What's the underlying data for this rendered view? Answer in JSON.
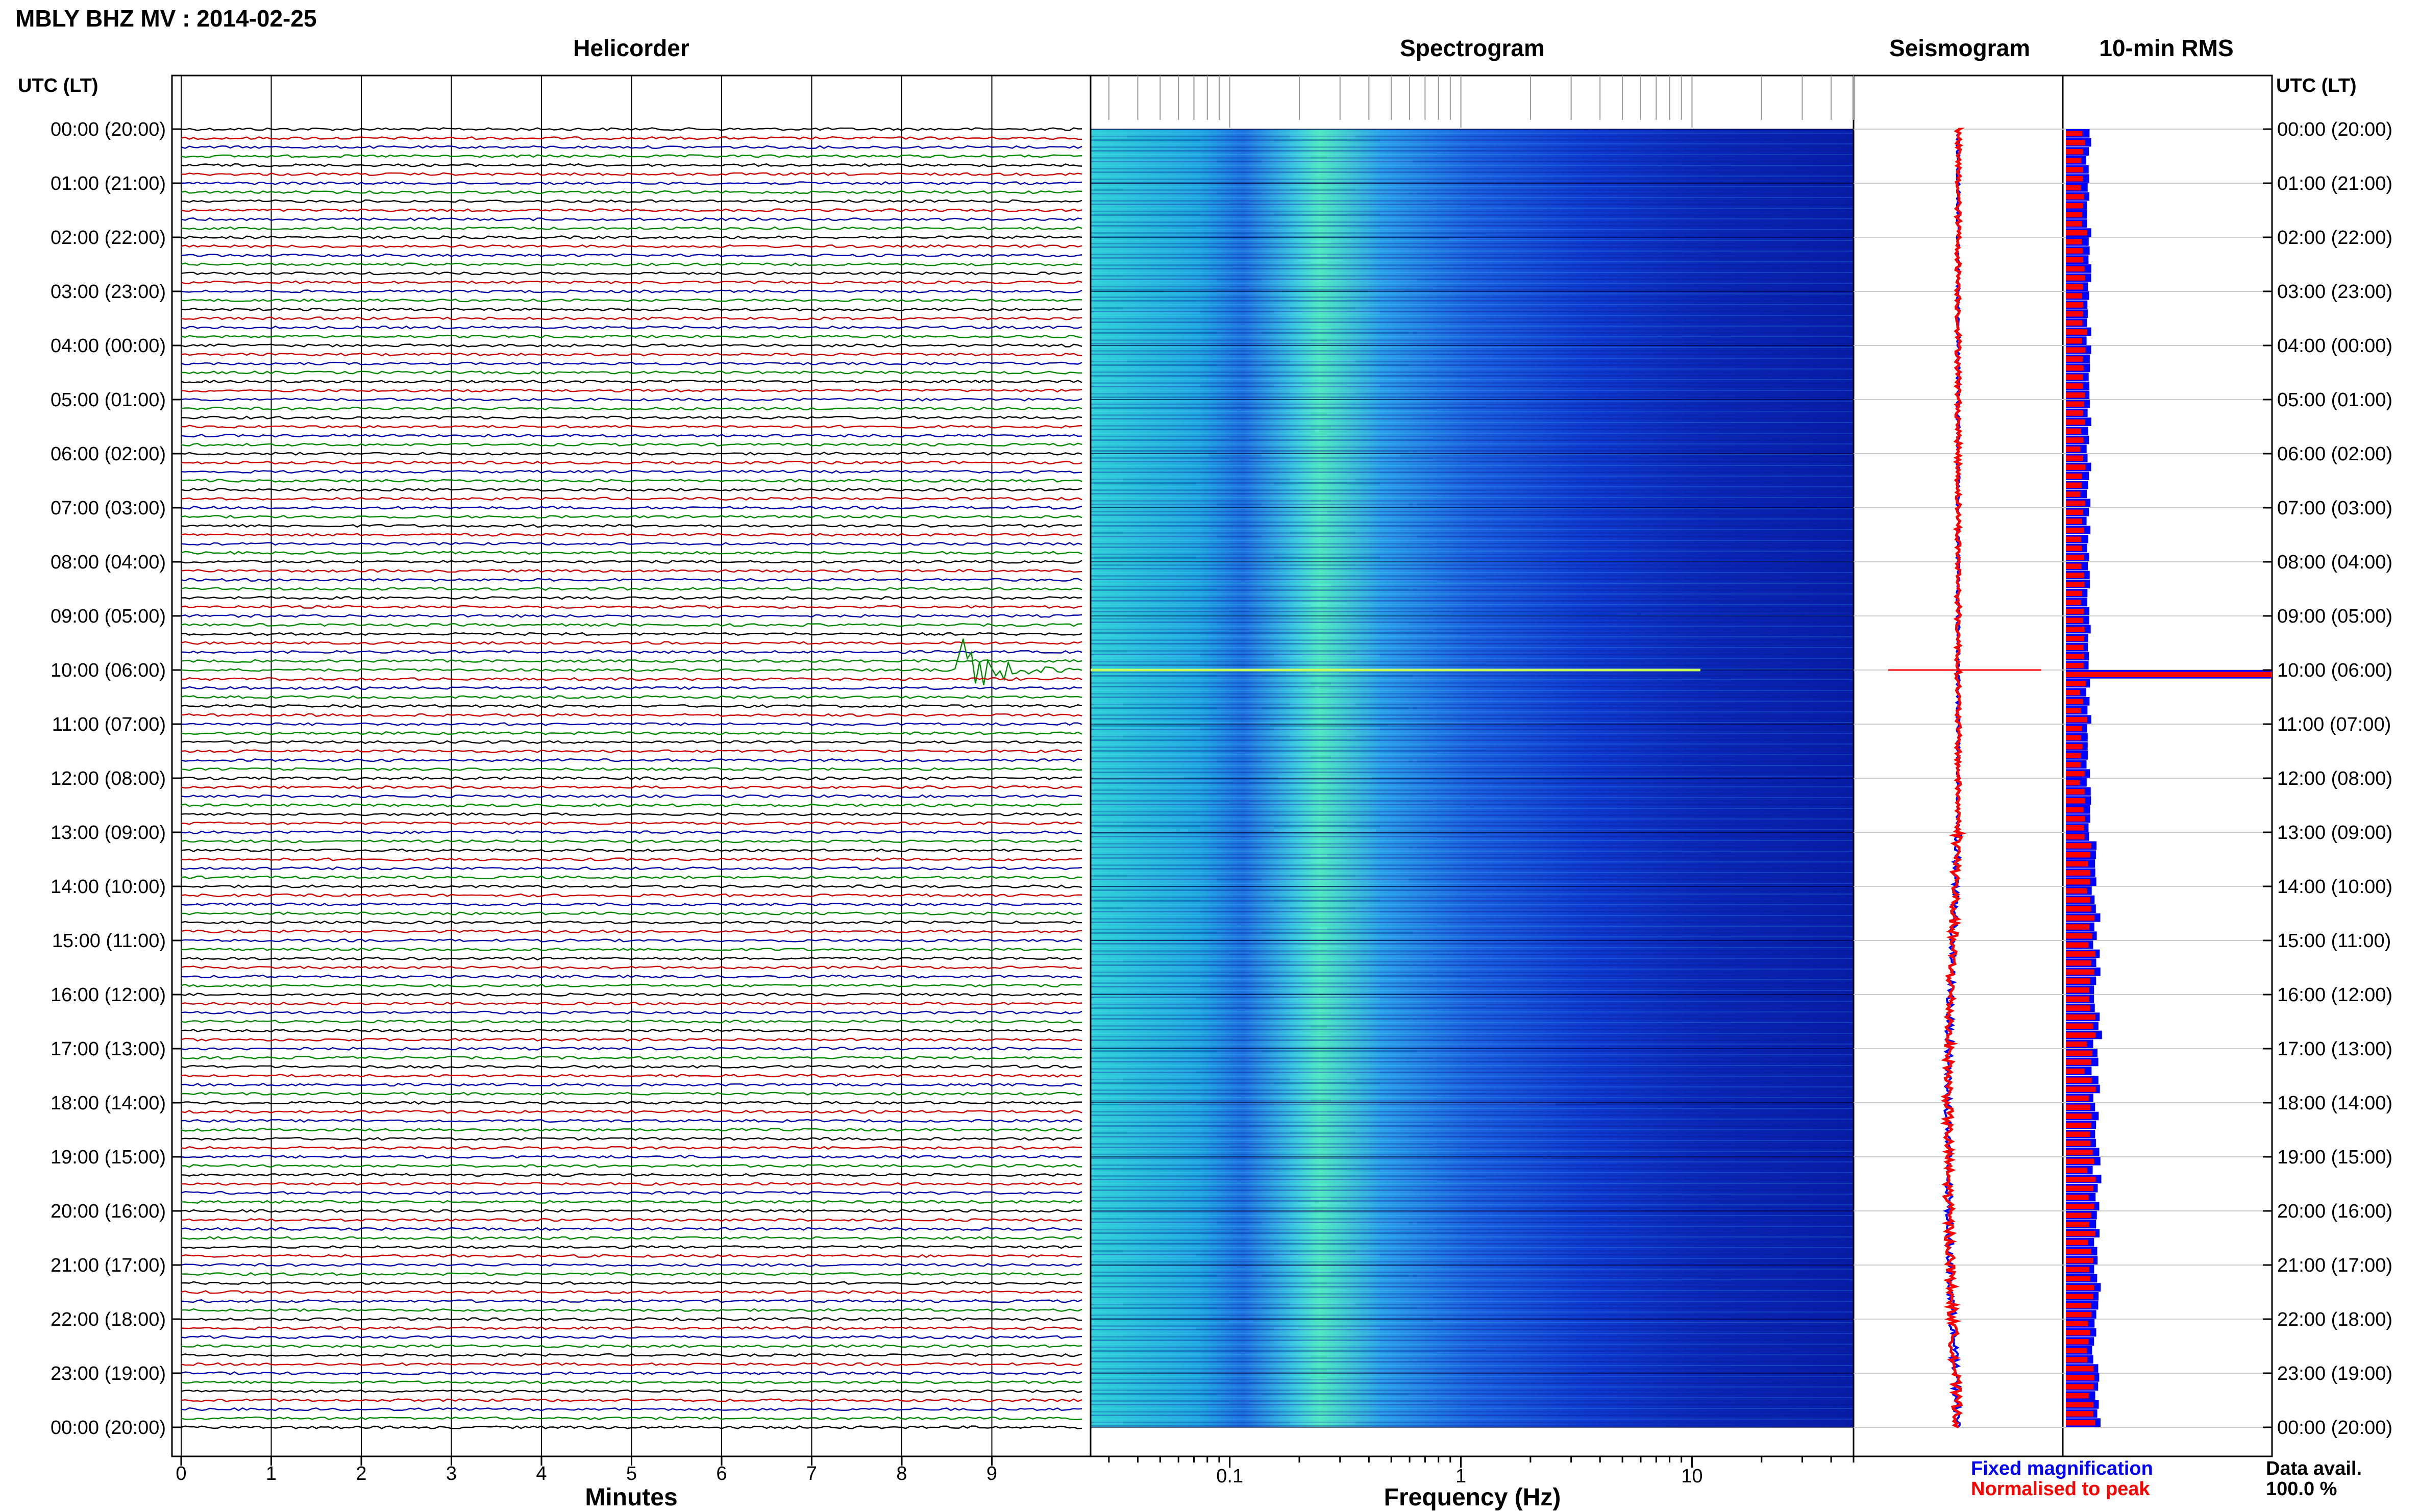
{
  "page_title": "MBLY BHZ MV : 2014-02-25",
  "time_axis_label": "UTC (LT)",
  "time_labels": [
    "00:00 (20:00)",
    "01:00 (21:00)",
    "02:00 (22:00)",
    "03:00 (23:00)",
    "04:00 (00:00)",
    "05:00 (01:00)",
    "06:00 (02:00)",
    "07:00 (03:00)",
    "08:00 (04:00)",
    "09:00 (05:00)",
    "10:00 (06:00)",
    "11:00 (07:00)",
    "12:00 (08:00)",
    "13:00 (09:00)",
    "14:00 (10:00)",
    "15:00 (11:00)",
    "16:00 (12:00)",
    "17:00 (13:00)",
    "18:00 (14:00)",
    "19:00 (15:00)",
    "20:00 (16:00)",
    "21:00 (17:00)",
    "22:00 (18:00)",
    "23:00 (19:00)",
    "00:00 (20:00)"
  ],
  "legend": {
    "fixed": "Fixed magnification",
    "normalised": "Normalised to peak"
  },
  "data_avail": {
    "label": "Data avail.",
    "value": "100.0 %"
  },
  "colors": {
    "trace_cycle": [
      "#000000",
      "#cc0000",
      "#0000aa",
      "#008800"
    ],
    "fixed": "#0000ff",
    "normalised": "#ff0000",
    "spectrogram_dark": "#0010a0",
    "spectrogram_light": "#40e0e0"
  },
  "chart_data": [
    {
      "type": "line",
      "title": "Helicorder",
      "xlabel": "Minutes",
      "ylabel": "",
      "xlim": [
        0,
        10
      ],
      "x_ticks": [
        0,
        1,
        2,
        3,
        4,
        5,
        6,
        7,
        8,
        9
      ],
      "traces_per_hour": 6,
      "hours": 24,
      "events": [
        {
          "hour": 10,
          "minute_start": 8.6,
          "minute_end": 10
        }
      ]
    },
    {
      "type": "heatmap",
      "title": "Spectrogram",
      "xlabel": "Frequency (Hz)",
      "ylabel": "",
      "x_scale": "log",
      "xlim": [
        0.025,
        50
      ],
      "x_ticks": [
        0.1,
        1,
        10
      ],
      "x_tick_labels": [
        "0.1",
        "1",
        "10"
      ],
      "hours": 24
    },
    {
      "type": "line",
      "title": "Seismogram",
      "xlabel": "",
      "ylabel": "",
      "events": [
        {
          "hour": 10
        }
      ]
    },
    {
      "type": "bar",
      "title": "10-min RMS",
      "xlabel": "",
      "ylabel": "",
      "events": [
        {
          "hour": 10
        }
      ]
    }
  ]
}
